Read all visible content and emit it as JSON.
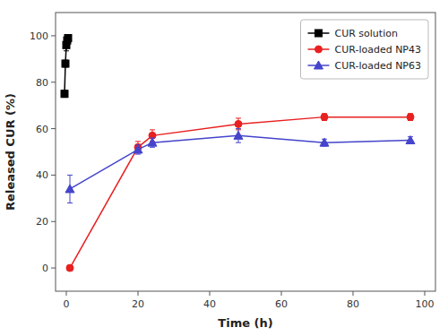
{
  "chart_data": {
    "type": "line",
    "xlabel": "Time (h)",
    "ylabel": "Released CUR (%)",
    "xlim": [
      -3,
      103
    ],
    "ylim": [
      -10,
      110
    ],
    "xticks": [
      0,
      20,
      40,
      60,
      80,
      100
    ],
    "yticks": [
      0,
      20,
      40,
      60,
      80,
      100
    ],
    "grid": false,
    "legend": "upper right",
    "series": [
      {
        "name": "CUR solution",
        "color": "#000000",
        "marker": "square",
        "line_style": "solid",
        "x": [
          -0.5,
          -0.25,
          0.0,
          0.25,
          0.5
        ],
        "values": [
          75,
          88,
          96,
          98,
          99
        ],
        "errors": [
          1.5,
          1.5,
          2.5,
          1.5,
          1.5
        ]
      },
      {
        "name": "CUR-loaded NP43",
        "color": "#e82020",
        "marker": "circle",
        "line_style": "solid",
        "x": [
          1,
          20,
          24,
          48,
          72,
          96
        ],
        "values": [
          0,
          52,
          57,
          62,
          65,
          65
        ],
        "errors": [
          0.3,
          2.5,
          2.5,
          2.5,
          1.5,
          1.5
        ]
      },
      {
        "name": "CUR-loaded NP63",
        "color": "#4444cc",
        "marker": "triangle",
        "line_style": "solid",
        "x": [
          1,
          20,
          24,
          48,
          72,
          96
        ],
        "values": [
          34,
          51,
          54,
          57,
          54,
          55
        ],
        "errors": [
          6,
          2,
          2,
          3,
          1.5,
          1.5
        ]
      }
    ]
  }
}
